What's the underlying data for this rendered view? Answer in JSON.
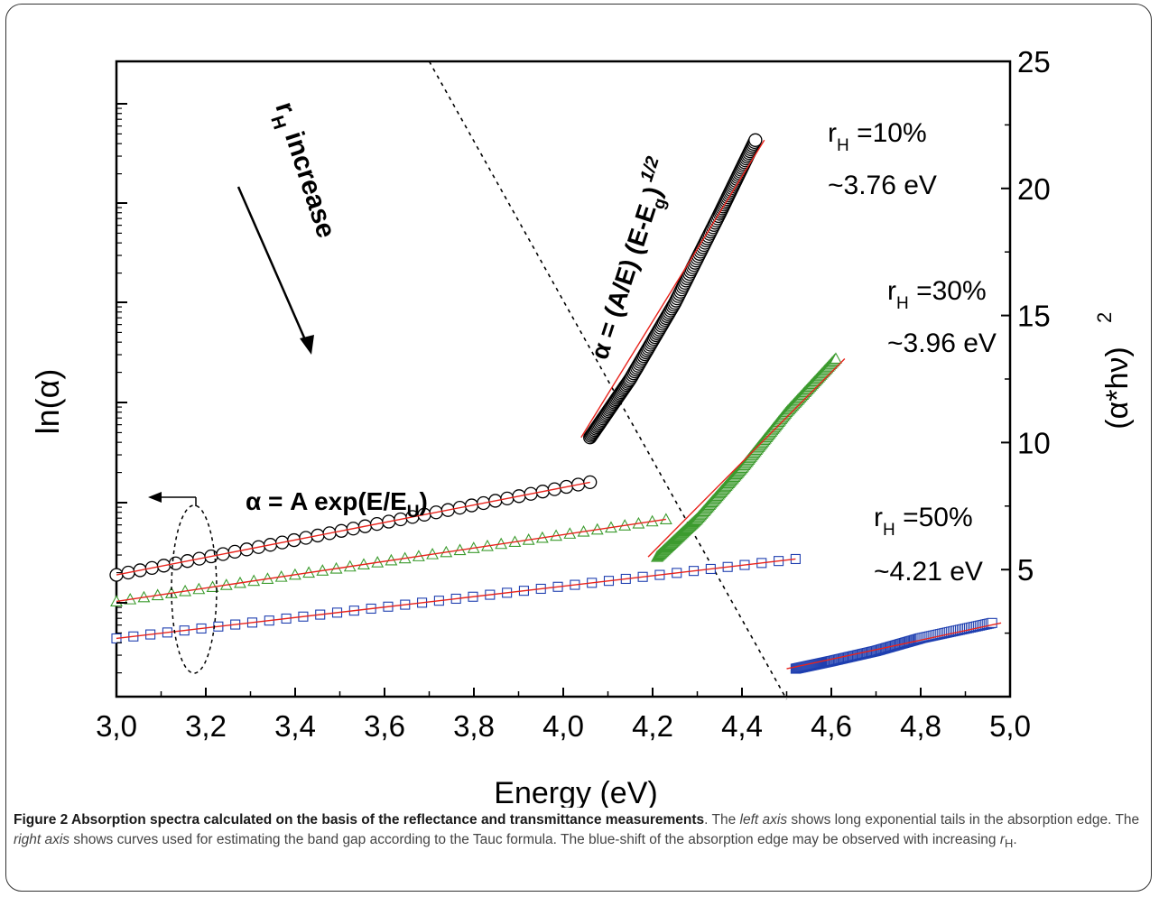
{
  "chart_data": {
    "type": "scatter",
    "xlabel": "Energy (eV)",
    "ylabel_left": "ln(α)",
    "ylabel_right": "(α*hν)",
    "ylabel_right_superscript": "2",
    "xlim": [
      3.0,
      5.0
    ],
    "x_ticks": [
      "3,0",
      "3,2",
      "3,4",
      "3,6",
      "3,8",
      "4,0",
      "4,2",
      "4,4",
      "4,6",
      "4,8",
      "5,0"
    ],
    "y_right_lim": [
      0,
      25
    ],
    "y_right_ticks": [
      "5",
      "10",
      "15",
      "20",
      "25"
    ],
    "left_axis_log": true,
    "series": [
      {
        "name": "r_H =10%",
        "marker": "circle",
        "color": "#000000",
        "axis": "left",
        "x": [
          3.0,
          4.06
        ],
        "y": [
          5.0,
          8.5
        ]
      },
      {
        "name": "r_H =30%",
        "marker": "triangle",
        "color": "#3c9b2e",
        "axis": "left",
        "x": [
          3.0,
          4.23
        ],
        "y": [
          4.0,
          7.1
        ]
      },
      {
        "name": "r_H =50%",
        "marker": "square",
        "color": "#1f3fb0",
        "axis": "left",
        "x": [
          3.0,
          4.52
        ],
        "y": [
          2.6,
          5.6
        ]
      },
      {
        "name": "r_H =10%",
        "marker": "circle",
        "color": "#000000",
        "axis": "right",
        "x": [
          4.06,
          4.15,
          4.25,
          4.35,
          4.43
        ],
        "y": [
          10.2,
          12.5,
          15.5,
          19.0,
          21.9
        ]
      },
      {
        "name": "r_H =30%",
        "marker": "triangle",
        "color": "#3c9b2e",
        "axis": "right",
        "x": [
          4.21,
          4.3,
          4.4,
          4.5,
          4.61
        ],
        "y": [
          5.5,
          7.0,
          9.0,
          11.2,
          13.3
        ]
      },
      {
        "name": "r_H =50%",
        "marker": "square",
        "color": "#1f3fb0",
        "axis": "right",
        "x": [
          4.52,
          4.6,
          4.7,
          4.8,
          4.96
        ],
        "y": [
          1.1,
          1.4,
          1.8,
          2.3,
          2.9
        ]
      }
    ],
    "annotations": {
      "top_formula": "α = (A/E) (E-E",
      "top_formula_sub": "g",
      "top_formula_end": ")",
      "top_formula_exp": "1/2",
      "exp_formula": "α = A exp(E/E",
      "exp_formula_sub": "U",
      "exp_formula_end": ")",
      "arrow_label": "r",
      "arrow_label_sub": "H",
      "arrow_label_end": " increase",
      "labels": [
        {
          "r": "r",
          "sub": "H",
          "pct": " =10%",
          "energy": "~3.76 eV"
        },
        {
          "r": "r",
          "sub": "H",
          "pct": " =30%",
          "energy": "~3.96 eV"
        },
        {
          "r": "r",
          "sub": "H",
          "pct": " =50%",
          "energy": "~4.21 eV"
        }
      ]
    }
  },
  "caption": {
    "title": "Figure 2 Absorption spectra calculated on the basis of the reflectance and transmittance measurements",
    "t1": ". The ",
    "left_axis": "left axis",
    "t2": " shows long exponential tails in the absorption edge. The ",
    "right_axis": "right axis",
    "t3": " shows curves used for estimating the band gap according to the Tauc formula. The blue-shift of the absorption edge may be observed with increasing ",
    "r": "r",
    "sub": "H",
    "end": "."
  }
}
